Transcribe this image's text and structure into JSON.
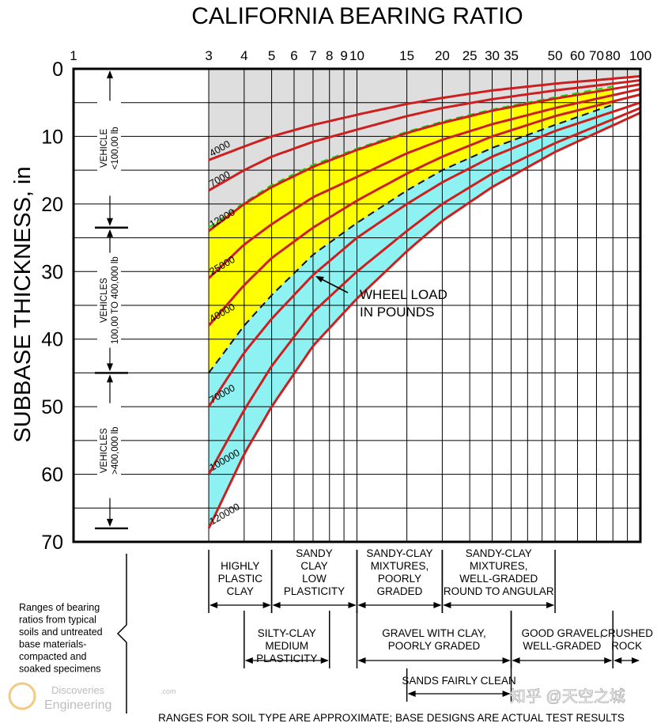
{
  "chart_data": {
    "type": "line",
    "title": "CALIFORNIA BEARING RATIO",
    "xlabel": "",
    "ylabel": "SUBBASE THICKNESS, in",
    "xscale": "log",
    "xlim": [
      1,
      100
    ],
    "ylim": [
      0,
      70
    ],
    "x_ticks": [
      "1",
      "3",
      "4",
      "5",
      "6",
      "7",
      "8",
      "9",
      "10",
      "15",
      "20",
      "25",
      "30",
      "35",
      "50",
      "60",
      "70",
      "80",
      "100"
    ],
    "y_ticks": [
      "0",
      "10",
      "20",
      "30",
      "40",
      "50",
      "60",
      "70"
    ],
    "series_unit": "wheel load, lb",
    "series": [
      {
        "name": "4000",
        "points": [
          [
            3,
            13.5
          ],
          [
            4,
            11.5
          ],
          [
            5,
            10
          ],
          [
            7,
            8.3
          ],
          [
            10,
            6.8
          ],
          [
            15,
            5.2
          ],
          [
            20,
            4.3
          ],
          [
            30,
            3.2
          ],
          [
            50,
            2.2
          ],
          [
            100,
            1.1
          ]
        ]
      },
      {
        "name": "7000",
        "points": [
          [
            3,
            18
          ],
          [
            4,
            15
          ],
          [
            5,
            13
          ],
          [
            7,
            10.8
          ],
          [
            10,
            9
          ],
          [
            15,
            7
          ],
          [
            20,
            5.8
          ],
          [
            30,
            4.5
          ],
          [
            50,
            3.2
          ],
          [
            100,
            1.7
          ]
        ]
      },
      {
        "name": "12000",
        "points": [
          [
            3,
            24
          ],
          [
            4,
            20
          ],
          [
            5,
            17.5
          ],
          [
            7,
            14.5
          ],
          [
            10,
            12
          ],
          [
            15,
            9.5
          ],
          [
            20,
            8
          ],
          [
            30,
            6.2
          ],
          [
            50,
            4.4
          ],
          [
            100,
            2.3
          ]
        ]
      },
      {
        "name": "25000",
        "points": [
          [
            3,
            31
          ],
          [
            4,
            26
          ],
          [
            5,
            23
          ],
          [
            7,
            19
          ],
          [
            10,
            16
          ],
          [
            15,
            12.5
          ],
          [
            20,
            10.5
          ],
          [
            30,
            8.2
          ],
          [
            50,
            5.8
          ],
          [
            100,
            3
          ]
        ]
      },
      {
        "name": "40000",
        "points": [
          [
            3,
            38
          ],
          [
            4,
            32
          ],
          [
            5,
            28
          ],
          [
            7,
            23.5
          ],
          [
            10,
            19.5
          ],
          [
            15,
            15.5
          ],
          [
            20,
            13
          ],
          [
            30,
            10
          ],
          [
            50,
            7
          ],
          [
            100,
            3.8
          ]
        ]
      },
      {
        "name": "70000",
        "points": [
          [
            3,
            50
          ],
          [
            4,
            42
          ],
          [
            5,
            37
          ],
          [
            7,
            30.5
          ],
          [
            10,
            25
          ],
          [
            15,
            20
          ],
          [
            20,
            16.8
          ],
          [
            30,
            13
          ],
          [
            50,
            9.2
          ],
          [
            100,
            5
          ]
        ]
      },
      {
        "name": "100000",
        "points": [
          [
            3,
            60
          ],
          [
            4,
            50.5
          ],
          [
            5,
            44
          ],
          [
            7,
            36
          ],
          [
            10,
            30
          ],
          [
            15,
            24
          ],
          [
            20,
            20
          ],
          [
            30,
            15.5
          ],
          [
            50,
            11
          ],
          [
            100,
            5.8
          ]
        ]
      },
      {
        "name": "120000",
        "points": [
          [
            3,
            68
          ],
          [
            4,
            57
          ],
          [
            5,
            50
          ],
          [
            7,
            41
          ],
          [
            10,
            34
          ],
          [
            15,
            27
          ],
          [
            20,
            22.5
          ],
          [
            30,
            17.5
          ],
          [
            50,
            12.3
          ],
          [
            100,
            6.5
          ]
        ]
      }
    ],
    "dashed_boundaries": [
      {
        "name": "100,000 lb boundary",
        "color": "#22cc22",
        "points": [
          [
            3,
            23.5
          ],
          [
            4,
            19.8
          ],
          [
            5,
            17.2
          ],
          [
            7,
            14.2
          ],
          [
            10,
            11.8
          ],
          [
            15,
            9.3
          ],
          [
            20,
            7.8
          ],
          [
            30,
            6
          ],
          [
            50,
            4.2
          ],
          [
            80,
            2.6
          ]
        ]
      },
      {
        "name": "400,000 lb boundary",
        "color": "#111111",
        "points": [
          [
            3,
            45
          ],
          [
            4,
            38
          ],
          [
            5,
            33.5
          ],
          [
            7,
            27.5
          ],
          [
            10,
            22.8
          ],
          [
            15,
            18
          ],
          [
            20,
            15
          ],
          [
            30,
            11.7
          ],
          [
            50,
            8.3
          ],
          [
            80,
            5.3
          ]
        ]
      }
    ],
    "annotation": {
      "text_line1": "WHEEL LOAD",
      "text_line2": "IN POUNDS"
    },
    "vehicle_ranges": [
      {
        "line1": "VEHICLE",
        "line2": "<100,00 lb",
        "from": 0,
        "to": 23.5
      },
      {
        "line1": "VEHICLES",
        "line2": "100,00 TO 400,000 lb",
        "from": 23.5,
        "to": 45
      },
      {
        "line1": "VEHICLES",
        "line2": ">400,000 lb",
        "from": 45,
        "to": 68
      }
    ],
    "colors": {
      "gray": "#dedede",
      "yellow": "#ffff00",
      "cyan": "#8ff2f2",
      "curve": "#cc1f1f",
      "grid": "#000000"
    }
  },
  "soil_ranges": {
    "note_lines": [
      "Ranges of bearing",
      "ratios from typical",
      "soils and untreated",
      "base materials-",
      "compacted and",
      "soaked specimens"
    ],
    "footer": "RANGES FOR SOIL TYPE ARE  APPROXIMATE; BASE DESIGNS ARE ACTUAL TEST RESULTS",
    "row1": [
      {
        "lines": [
          "HIGHLY",
          "PLASTIC",
          "CLAY"
        ],
        "from": 3,
        "to": 5
      },
      {
        "lines": [
          "SANDY",
          "CLAY",
          "LOW",
          "PLASTICITY"
        ],
        "from": 5,
        "to": 10
      },
      {
        "lines": [
          "SANDY-CLAY",
          "MIXTURES,",
          "POORLY",
          "GRADED"
        ],
        "from": 10,
        "to": 20
      },
      {
        "lines": [
          "SANDY-CLAY",
          "MIXTURES,",
          "WELL-GRADED",
          "ROUND TO ANGULAR"
        ],
        "from": 20,
        "to": 50
      }
    ],
    "row2": [
      {
        "lines": [
          "SILTY-CLAY",
          "MEDIUM",
          "PLASTICITY"
        ],
        "from": 4,
        "to": 8
      },
      {
        "lines": [
          "GRAVEL WITH CLAY,",
          "POORLY GRADED"
        ],
        "from": 10,
        "to": 35
      },
      {
        "lines": [
          "GOOD GRAVEL,",
          "WELL-GRADED"
        ],
        "from": 35,
        "to": 80
      },
      {
        "lines": [
          "CRUSHED",
          "ROCK"
        ],
        "from": 80,
        "to": 100
      }
    ],
    "row3": [
      {
        "lines": [
          "SANDS FAIRLY CLEAN"
        ],
        "from": 15,
        "to": 35
      }
    ]
  },
  "watermarks": {
    "left_line1": "Discoveries",
    "left_suffix": ".com",
    "left_line2": "Engineering",
    "right": "知乎 @天空之城"
  }
}
